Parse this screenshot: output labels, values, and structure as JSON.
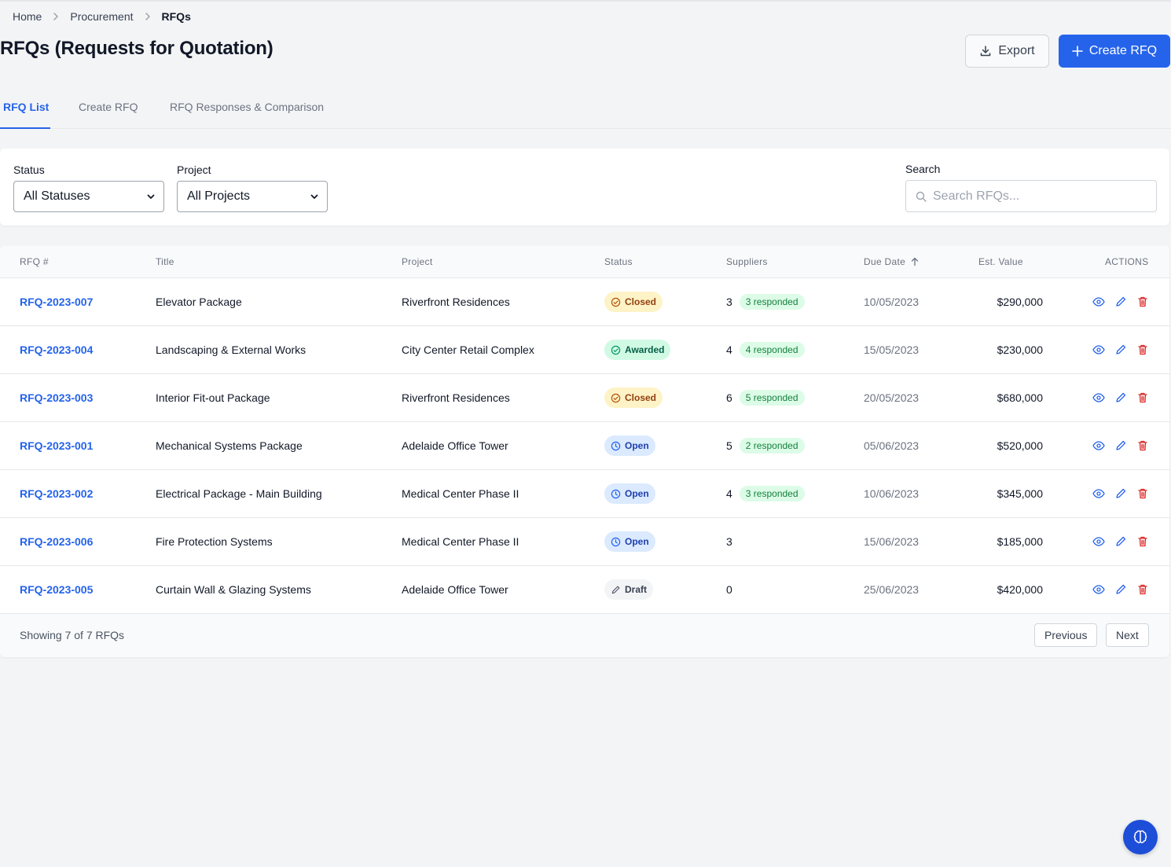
{
  "breadcrumb": {
    "items": [
      "Home",
      "Procurement"
    ],
    "current": "RFQs"
  },
  "page": {
    "title": "RFQs (Requests for Quotation)"
  },
  "actions": {
    "export_label": "Export",
    "create_label": "Create RFQ"
  },
  "tabs": [
    {
      "label": "RFQ List",
      "active": true
    },
    {
      "label": "Create RFQ",
      "active": false
    },
    {
      "label": "RFQ Responses & Comparison",
      "active": false
    }
  ],
  "filters": {
    "status_label": "Status",
    "status_value": "All Statuses",
    "project_label": "Project",
    "project_value": "All Projects",
    "search_label": "Search",
    "search_placeholder": "Search RFQs..."
  },
  "table": {
    "headers": {
      "rfq": "RFQ #",
      "title": "Title",
      "project": "Project",
      "status": "Status",
      "suppliers": "Suppliers",
      "due_date": "Due Date",
      "value": "Est. Value",
      "actions": "ACTIONS"
    },
    "rows": [
      {
        "id": "RFQ-2023-007",
        "title": "Elevator Package",
        "project": "Riverfront Residences",
        "status": "Closed",
        "suppliers": "3",
        "responded": "3 responded",
        "due": "10/05/2023",
        "value": "$290,000"
      },
      {
        "id": "RFQ-2023-004",
        "title": "Landscaping & External Works",
        "project": "City Center Retail Complex",
        "status": "Awarded",
        "suppliers": "4",
        "responded": "4 responded",
        "due": "15/05/2023",
        "value": "$230,000"
      },
      {
        "id": "RFQ-2023-003",
        "title": "Interior Fit-out Package",
        "project": "Riverfront Residences",
        "status": "Closed",
        "suppliers": "6",
        "responded": "5 responded",
        "due": "20/05/2023",
        "value": "$680,000"
      },
      {
        "id": "RFQ-2023-001",
        "title": "Mechanical Systems Package",
        "project": "Adelaide Office Tower",
        "status": "Open",
        "suppliers": "5",
        "responded": "2 responded",
        "due": "05/06/2023",
        "value": "$520,000"
      },
      {
        "id": "RFQ-2023-002",
        "title": "Electrical Package - Main Building",
        "project": "Medical Center Phase II",
        "status": "Open",
        "suppliers": "4",
        "responded": "3 responded",
        "due": "10/06/2023",
        "value": "$345,000"
      },
      {
        "id": "RFQ-2023-006",
        "title": "Fire Protection Systems",
        "project": "Medical Center Phase II",
        "status": "Open",
        "suppliers": "3",
        "responded": "",
        "due": "15/06/2023",
        "value": "$185,000"
      },
      {
        "id": "RFQ-2023-005",
        "title": "Curtain Wall & Glazing Systems",
        "project": "Adelaide Office Tower",
        "status": "Draft",
        "suppliers": "0",
        "responded": "",
        "due": "25/06/2023",
        "value": "$420,000"
      }
    ]
  },
  "footer": {
    "showing": "Showing 7 of 7 RFQs",
    "previous": "Previous",
    "next": "Next"
  },
  "colors": {
    "primary": "#2563eb",
    "delete": "#dc2626"
  },
  "icons": {
    "export": "download-icon",
    "create": "plus-icon",
    "search": "search-icon",
    "view": "eye-icon",
    "edit": "pencil-icon",
    "delete": "trash-icon",
    "fab": "brain-icon"
  }
}
